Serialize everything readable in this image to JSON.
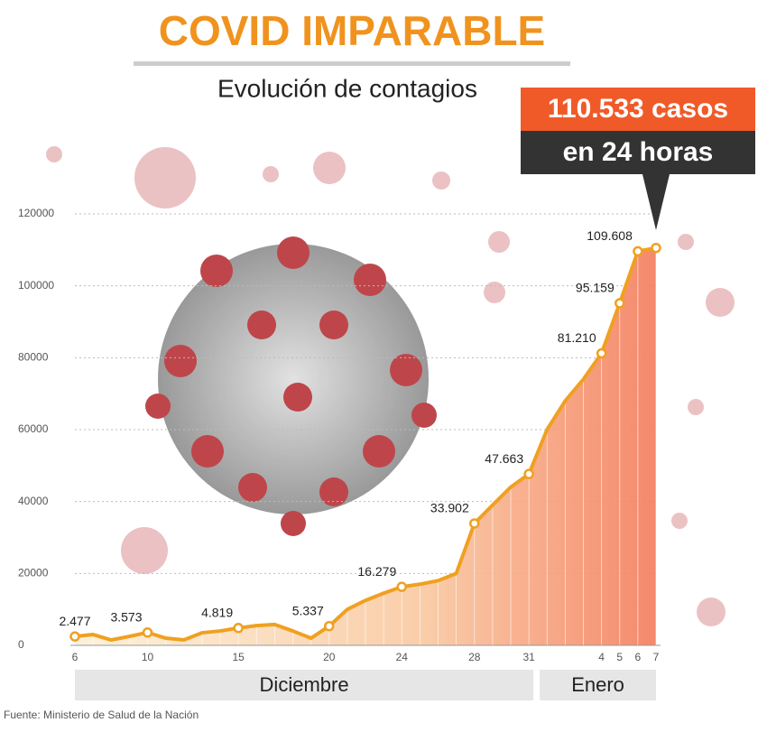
{
  "chart_data": {
    "type": "line",
    "title": "COVID IMPARABLE",
    "subtitle": "Evolución de contagios",
    "callout": [
      "110.533 casos",
      "en 24 horas"
    ],
    "months": [
      "Diciembre",
      "Enero"
    ],
    "source": "Fuente: Ministerio de Salud de la Nación",
    "categories": [
      "6",
      null,
      null,
      null,
      "10",
      null,
      null,
      null,
      null,
      "15",
      null,
      null,
      null,
      null,
      "20",
      null,
      null,
      null,
      "24",
      null,
      null,
      null,
      "28",
      null,
      null,
      "31",
      null,
      null,
      null,
      "4",
      "5",
      "6",
      "7"
    ],
    "values": [
      2477,
      3000,
      1500,
      2500,
      3573,
      2000,
      1500,
      3500,
      4000,
      4819,
      5500,
      5800,
      4000,
      2000,
      5337,
      10000,
      12500,
      14500,
      16279,
      17000,
      18000,
      20000,
      33902,
      39000,
      44000,
      47663,
      60000,
      68000,
      74000,
      81210,
      95159,
      109608,
      110533
    ],
    "value_labels": [
      "2.477",
      null,
      null,
      null,
      "3.573",
      null,
      null,
      null,
      null,
      "4.819",
      null,
      null,
      null,
      null,
      "5.337",
      null,
      null,
      null,
      "16.279",
      null,
      null,
      null,
      "33.902",
      null,
      null,
      "47.663",
      null,
      null,
      null,
      "81.210",
      "95.159",
      "109.608",
      null
    ],
    "color": "#f0a020",
    "ylim": [
      0,
      120000
    ],
    "yticks": [
      0,
      20000,
      40000,
      60000,
      80000,
      100000,
      120000
    ],
    "grid": true
  }
}
